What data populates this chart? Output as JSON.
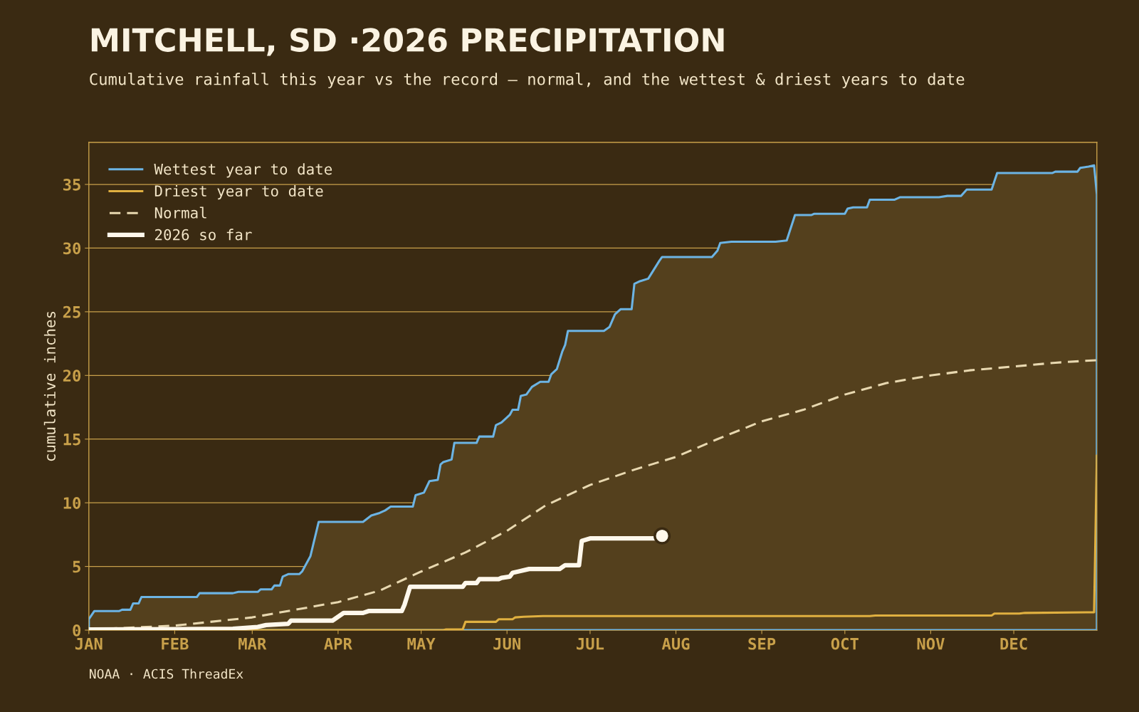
{
  "chart_data": {
    "type": "line",
    "title": "MITCHELL, SD ·2026 PRECIPITATION",
    "subtitle": "Cumulative rainfall this year vs the record — normal, and the wettest & driest years to date",
    "ylabel": "cumulative inches",
    "annotations": [
      "NOAA · ACIS ThreadEx"
    ],
    "xlim": [
      "2026-01-01",
      "2026-12-31"
    ],
    "xticks": [
      {
        "value": "2026-01-01",
        "label": "JAN"
      },
      {
        "value": "2026-02-01",
        "label": "FEB"
      },
      {
        "value": "2026-03-01",
        "label": "MAR"
      },
      {
        "value": "2026-04-01",
        "label": "APR"
      },
      {
        "value": "2026-05-01",
        "label": "MAY"
      },
      {
        "value": "2026-06-01",
        "label": "JUN"
      },
      {
        "value": "2026-07-01",
        "label": "JUL"
      },
      {
        "value": "2026-08-01",
        "label": "AUG"
      },
      {
        "value": "2026-09-01",
        "label": "SEP"
      },
      {
        "value": "2026-10-01",
        "label": "OCT"
      },
      {
        "value": "2026-11-01",
        "label": "NOV"
      },
      {
        "value": "2026-12-01",
        "label": "DEC"
      }
    ],
    "ylim": [
      0,
      38.3
    ],
    "yticks": [
      0,
      5,
      10,
      15,
      20,
      25,
      30,
      35
    ],
    "grid": "y",
    "legend": "top left",
    "series": [
      {
        "name": "Wettest year to date",
        "type": "area",
        "color": "#6cb4e4",
        "line_style": "solid",
        "x": [
          "2026-01-01",
          "2026-01-03",
          "2026-01-12",
          "2026-01-13",
          "2026-01-16",
          "2026-01-17",
          "2026-01-19",
          "2026-01-20",
          "2026-02-09",
          "2026-02-10",
          "2026-02-22",
          "2026-02-24",
          "2026-03-03",
          "2026-03-04",
          "2026-03-08",
          "2026-03-09",
          "2026-03-11",
          "2026-03-12",
          "2026-03-14",
          "2026-03-18",
          "2026-03-19",
          "2026-03-20",
          "2026-03-22",
          "2026-03-24",
          "2026-03-25",
          "2026-04-10",
          "2026-04-13",
          "2026-04-16",
          "2026-04-18",
          "2026-04-20",
          "2026-04-28",
          "2026-04-29",
          "2026-05-02",
          "2026-05-04",
          "2026-05-07",
          "2026-05-08",
          "2026-05-09",
          "2026-05-12",
          "2026-05-13",
          "2026-05-21",
          "2026-05-22",
          "2026-05-27",
          "2026-05-28",
          "2026-05-30",
          "2026-06-02",
          "2026-06-03",
          "2026-06-05",
          "2026-06-06",
          "2026-06-08",
          "2026-06-10",
          "2026-06-13",
          "2026-06-16",
          "2026-06-17",
          "2026-06-19",
          "2026-06-21",
          "2026-06-22",
          "2026-06-23",
          "2026-07-06",
          "2026-07-08",
          "2026-07-10",
          "2026-07-12",
          "2026-07-16",
          "2026-07-17",
          "2026-07-19",
          "2026-07-22",
          "2026-07-24",
          "2026-07-26",
          "2026-07-27",
          "2026-08-14",
          "2026-08-16",
          "2026-08-17",
          "2026-08-21",
          "2026-09-06",
          "2026-09-10",
          "2026-09-13",
          "2026-09-19",
          "2026-09-20",
          "2026-10-01",
          "2026-10-02",
          "2026-10-04",
          "2026-10-09",
          "2026-10-10",
          "2026-10-19",
          "2026-10-21",
          "2026-11-04",
          "2026-11-07",
          "2026-11-12",
          "2026-11-14",
          "2026-11-23",
          "2026-11-25",
          "2026-12-15",
          "2026-12-16",
          "2026-12-24",
          "2026-12-25",
          "2026-12-28",
          "2026-12-30",
          "2026-12-31"
        ],
        "values": [
          0.86,
          1.5,
          1.5,
          1.6,
          1.6,
          2.1,
          2.1,
          2.6,
          2.6,
          2.9,
          2.9,
          3.0,
          3.0,
          3.2,
          3.2,
          3.5,
          3.5,
          4.2,
          4.4,
          4.4,
          4.6,
          5.0,
          5.8,
          7.6,
          8.5,
          8.5,
          9.0,
          9.2,
          9.4,
          9.7,
          9.7,
          10.6,
          10.8,
          11.7,
          11.8,
          13.0,
          13.2,
          13.4,
          14.7,
          14.7,
          15.2,
          15.2,
          16.1,
          16.3,
          16.9,
          17.3,
          17.3,
          18.4,
          18.5,
          19.1,
          19.5,
          19.5,
          20.1,
          20.5,
          21.9,
          22.4,
          23.5,
          23.5,
          23.8,
          24.8,
          25.2,
          25.2,
          27.2,
          27.4,
          27.6,
          28.3,
          29.0,
          29.3,
          29.3,
          29.8,
          30.4,
          30.5,
          30.5,
          30.6,
          32.6,
          32.6,
          32.7,
          32.7,
          33.1,
          33.2,
          33.2,
          33.8,
          33.8,
          34.0,
          34.0,
          34.1,
          34.1,
          34.6,
          34.6,
          35.9,
          35.9,
          36.0,
          36.0,
          36.3,
          36.4,
          36.5,
          34.2
        ]
      },
      {
        "name": "Driest year to date",
        "color": "#e0b040",
        "line_style": "solid",
        "x": [
          "2026-01-01",
          "2026-05-09",
          "2026-05-10",
          "2026-05-16",
          "2026-05-17",
          "2026-05-28",
          "2026-05-29",
          "2026-06-03",
          "2026-06-04",
          "2026-06-07",
          "2026-06-14",
          "2026-10-10",
          "2026-10-12",
          "2026-11-23",
          "2026-11-24",
          "2026-12-03",
          "2026-12-05",
          "2026-12-30",
          "2026-12-31"
        ],
        "values": [
          0,
          0,
          0.05,
          0.05,
          0.65,
          0.65,
          0.85,
          0.85,
          1.0,
          1.05,
          1.1,
          1.1,
          1.15,
          1.15,
          1.3,
          1.3,
          1.35,
          1.4,
          13.7
        ]
      },
      {
        "name": "Normal",
        "color": "#e8d8b0",
        "line_style": "dashed",
        "x": [
          "2026-01-01",
          "2026-02-01",
          "2026-03-01",
          "2026-04-01",
          "2026-04-16",
          "2026-05-01",
          "2026-05-17",
          "2026-06-01",
          "2026-06-15",
          "2026-07-01",
          "2026-07-17",
          "2026-08-01",
          "2026-08-16",
          "2026-09-01",
          "2026-09-16",
          "2026-10-01",
          "2026-10-16",
          "2026-11-01",
          "2026-11-15",
          "2026-12-01",
          "2026-12-16",
          "2026-12-31"
        ],
        "values": [
          0.05,
          0.35,
          1.0,
          2.2,
          3.1,
          4.6,
          6.1,
          7.8,
          9.8,
          11.4,
          12.6,
          13.6,
          15.0,
          16.4,
          17.3,
          18.5,
          19.4,
          20.0,
          20.4,
          20.7,
          21.0,
          21.2
        ]
      },
      {
        "name": "2026 so far",
        "color": "#fff8ec",
        "line_style": "solid",
        "x": [
          "2026-01-01",
          "2026-02-22",
          "2026-03-03",
          "2026-03-06",
          "2026-03-14",
          "2026-03-15",
          "2026-03-30",
          "2026-04-03",
          "2026-04-10",
          "2026-04-12",
          "2026-04-24",
          "2026-04-25",
          "2026-04-27",
          "2026-05-16",
          "2026-05-17",
          "2026-05-21",
          "2026-05-22",
          "2026-05-29",
          "2026-05-30",
          "2026-06-02",
          "2026-06-03",
          "2026-06-05",
          "2026-06-09",
          "2026-06-20",
          "2026-06-22",
          "2026-06-27",
          "2026-06-28",
          "2026-07-01",
          "2026-07-25",
          "2026-07-27"
        ],
        "values": [
          0.05,
          0.1,
          0.25,
          0.4,
          0.5,
          0.75,
          0.75,
          1.35,
          1.35,
          1.5,
          1.5,
          2.0,
          3.4,
          3.4,
          3.7,
          3.7,
          4.0,
          4.0,
          4.1,
          4.2,
          4.5,
          4.6,
          4.8,
          4.8,
          5.1,
          5.1,
          7.0,
          7.2,
          7.2,
          7.4
        ]
      },
      {
        "type": "scatter",
        "color": "#fff8ec",
        "marker": "circle",
        "x": [
          "2026-07-27"
        ],
        "values": [
          7.4
        ]
      }
    ]
  }
}
